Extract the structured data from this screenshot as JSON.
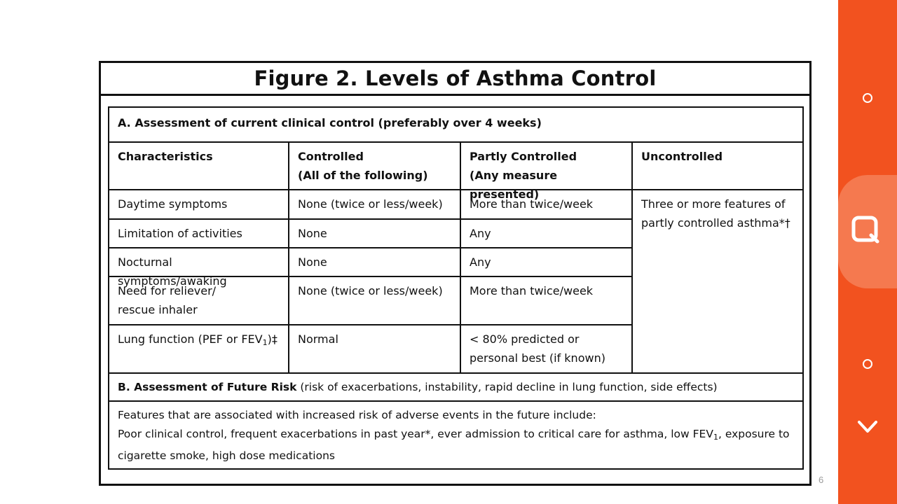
{
  "figure": {
    "title": "Figure 2. Levels of Asthma Control",
    "section_a": "A. Assessment of current clinical control (preferably over 4 weeks)",
    "headers": {
      "characteristics": "Characteristics",
      "controlled_1": "Controlled",
      "controlled_2": "(All of the following)",
      "partly_1": "Partly Controlled",
      "partly_2": "(Any measure presented)",
      "uncontrolled": "Uncontrolled"
    },
    "rows": [
      {
        "characteristic": "Daytime symptoms",
        "controlled": "None (twice or less/week)",
        "partly": "More than twice/week"
      },
      {
        "characteristic": "Limitation of activities",
        "controlled": "None",
        "partly": "Any"
      },
      {
        "characteristic": "Nocturnal symptoms/awaking",
        "controlled": "None",
        "partly": "Any"
      },
      {
        "characteristic_1": "Need for reliever/",
        "characteristic_2": "rescue inhaler",
        "controlled": "None (twice or less/week)",
        "partly": "More than twice/week"
      },
      {
        "characteristic_pre": "Lung function (PEF or FEV",
        "characteristic_sub": "1",
        "characteristic_post": ")‡",
        "controlled": "Normal",
        "partly_1": "< 80% predicted or",
        "partly_2": "personal best (if known)"
      }
    ],
    "uncontrolled_1": "Three or more features of",
    "uncontrolled_2": "partly controlled asthma*†",
    "section_b_bold": "B. Assessment of Future Risk",
    "section_b_rest": " (risk of exacerbations, instability, rapid decline in lung function, side effects)",
    "future_1": "Features that are associated with increased risk of adverse events in the future include:",
    "future_2_pre": "Poor clinical control, frequent exacerbations in past year*, ever admission to critical care for asthma, low FEV",
    "future_2_sub": "1",
    "future_2_post": ", exposure to",
    "future_3": "cigarette smoke, high dose medications"
  },
  "page_number": "6",
  "side_panel": {
    "color": "#f2521f",
    "icons": [
      "circle-icon",
      "search-icon",
      "circle-icon",
      "chevron-down-icon"
    ]
  }
}
